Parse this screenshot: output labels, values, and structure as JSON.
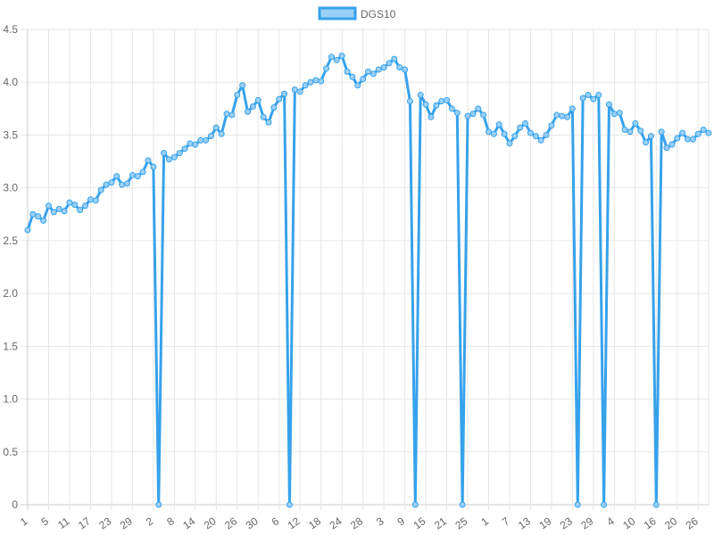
{
  "chart_data": {
    "type": "line",
    "title": "",
    "xlabel": "",
    "ylabel": "",
    "ylim": [
      0,
      4.5
    ],
    "y_ticks": [
      "0",
      "0.5",
      "1.0",
      "1.5",
      "2.0",
      "2.5",
      "3.0",
      "3.5",
      "4.0",
      "4.5"
    ],
    "grid": true,
    "legend_position": "top",
    "x_tick_labels": [
      "1",
      "5",
      "11",
      "17",
      "23",
      "29",
      "2",
      "8",
      "14",
      "20",
      "26",
      "30",
      "6",
      "12",
      "18",
      "24",
      "28",
      "3",
      "9",
      "15",
      "21",
      "25",
      "1",
      "7",
      "13",
      "19",
      "23",
      "29",
      "4",
      "10",
      "16",
      "20",
      "26"
    ],
    "series": [
      {
        "name": "DGS10",
        "color": "#36a2eb",
        "fill_color": "#9ad0f5",
        "values": [
          2.6,
          2.75,
          2.73,
          2.69,
          2.83,
          2.77,
          2.8,
          2.78,
          2.86,
          2.84,
          2.79,
          2.83,
          2.89,
          2.88,
          2.98,
          3.03,
          3.05,
          3.11,
          3.03,
          3.04,
          3.12,
          3.11,
          3.15,
          3.26,
          3.2,
          0,
          3.33,
          3.27,
          3.29,
          3.33,
          3.37,
          3.42,
          3.41,
          3.45,
          3.45,
          3.49,
          3.57,
          3.51,
          3.7,
          3.69,
          3.88,
          3.97,
          3.72,
          3.77,
          3.83,
          3.67,
          3.62,
          3.76,
          3.84,
          3.89,
          0,
          3.93,
          3.91,
          3.97,
          4.0,
          4.02,
          4.01,
          4.13,
          4.24,
          4.21,
          4.25,
          4.1,
          4.05,
          3.97,
          4.03,
          4.1,
          4.08,
          4.12,
          4.14,
          4.18,
          4.22,
          4.14,
          4.12,
          3.82,
          0,
          3.88,
          3.79,
          3.67,
          3.78,
          3.82,
          3.83,
          3.75,
          3.71,
          0,
          3.68,
          3.7,
          3.75,
          3.69,
          3.53,
          3.51,
          3.6,
          3.51,
          3.42,
          3.49,
          3.57,
          3.61,
          3.52,
          3.49,
          3.45,
          3.5,
          3.59,
          3.69,
          3.68,
          3.67,
          3.75,
          0,
          3.85,
          3.88,
          3.84,
          3.88,
          0,
          3.79,
          3.7,
          3.71,
          3.55,
          3.53,
          3.61,
          3.54,
          3.43,
          3.49,
          0,
          3.53,
          3.38,
          3.41,
          3.47,
          3.52,
          3.46,
          3.46,
          3.51,
          3.55,
          3.52
        ]
      }
    ]
  }
}
